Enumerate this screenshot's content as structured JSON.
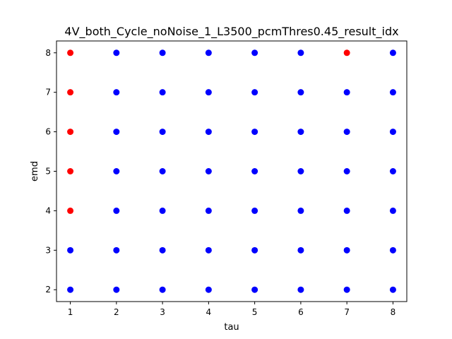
{
  "chart_data": {
    "type": "scatter",
    "title": "4V_both_Cycle_noNoise_1_L3500_pcmThres0.45_result_idx",
    "xlabel": "tau",
    "ylabel": "emd",
    "xlim": [
      0.7,
      8.3
    ],
    "ylim": [
      1.7,
      8.3
    ],
    "xticks": [
      1,
      2,
      3,
      4,
      5,
      6,
      7,
      8
    ],
    "yticks": [
      2,
      3,
      4,
      5,
      6,
      7,
      8
    ],
    "grid": false,
    "colors": {
      "default": "#0000ff",
      "highlight": "#ff0000"
    },
    "series": [
      {
        "color": "#0000ff",
        "points": [
          [
            1,
            2
          ],
          [
            1,
            3
          ],
          [
            2,
            2
          ],
          [
            2,
            3
          ],
          [
            2,
            4
          ],
          [
            2,
            5
          ],
          [
            2,
            6
          ],
          [
            2,
            7
          ],
          [
            2,
            8
          ],
          [
            3,
            2
          ],
          [
            3,
            3
          ],
          [
            3,
            4
          ],
          [
            3,
            5
          ],
          [
            3,
            6
          ],
          [
            3,
            7
          ],
          [
            3,
            8
          ],
          [
            4,
            2
          ],
          [
            4,
            3
          ],
          [
            4,
            4
          ],
          [
            4,
            5
          ],
          [
            4,
            6
          ],
          [
            4,
            7
          ],
          [
            4,
            8
          ],
          [
            5,
            2
          ],
          [
            5,
            3
          ],
          [
            5,
            4
          ],
          [
            5,
            5
          ],
          [
            5,
            6
          ],
          [
            5,
            7
          ],
          [
            5,
            8
          ],
          [
            6,
            2
          ],
          [
            6,
            3
          ],
          [
            6,
            4
          ],
          [
            6,
            5
          ],
          [
            6,
            6
          ],
          [
            6,
            7
          ],
          [
            6,
            8
          ],
          [
            7,
            2
          ],
          [
            7,
            3
          ],
          [
            7,
            4
          ],
          [
            7,
            5
          ],
          [
            7,
            6
          ],
          [
            7,
            7
          ],
          [
            8,
            2
          ],
          [
            8,
            3
          ],
          [
            8,
            4
          ],
          [
            8,
            5
          ],
          [
            8,
            6
          ],
          [
            8,
            7
          ],
          [
            8,
            8
          ]
        ]
      },
      {
        "color": "#ff0000",
        "points": [
          [
            1,
            4
          ],
          [
            1,
            5
          ],
          [
            1,
            6
          ],
          [
            1,
            7
          ],
          [
            1,
            8
          ],
          [
            7,
            8
          ]
        ]
      }
    ]
  }
}
